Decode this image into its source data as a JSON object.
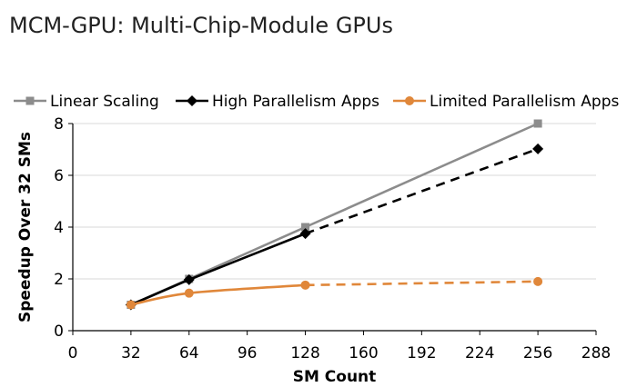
{
  "page": {
    "title": "MCM-GPU: Multi-Chip-Module GPUs"
  },
  "colors": {
    "linear": "#8c8c8c",
    "high": "#000000",
    "limited": "#e0873a",
    "axis": "#000000",
    "grid": "#d9d9d9"
  },
  "chart_data": {
    "type": "line",
    "title": "",
    "xlabel": "SM Count",
    "ylabel": "Speedup Over 32 SMs",
    "xlim": [
      0,
      288
    ],
    "ylim": [
      0,
      8
    ],
    "xticks": [
      0,
      32,
      64,
      96,
      128,
      160,
      192,
      224,
      256,
      288
    ],
    "yticks": [
      0,
      2,
      4,
      6,
      8
    ],
    "grid": "horizontal",
    "legend_position": "top",
    "series": [
      {
        "name": "Linear Scaling",
        "color_key": "linear",
        "marker": "square",
        "x": [
          32,
          64,
          128,
          256
        ],
        "y": [
          1,
          2,
          4,
          8
        ],
        "dashed_from_index": null
      },
      {
        "name": "High Parallelism Apps",
        "color_key": "high",
        "marker": "diamond",
        "x": [
          32,
          64,
          128,
          256
        ],
        "y": [
          1,
          1.97,
          3.75,
          7.02
        ],
        "dashed_from_index": 2
      },
      {
        "name": "Limited Parallelism Apps",
        "color_key": "limited",
        "marker": "circle",
        "x": [
          32,
          64,
          128,
          256
        ],
        "y": [
          1,
          1.45,
          1.76,
          1.9
        ],
        "dashed_from_index": 2
      }
    ]
  }
}
